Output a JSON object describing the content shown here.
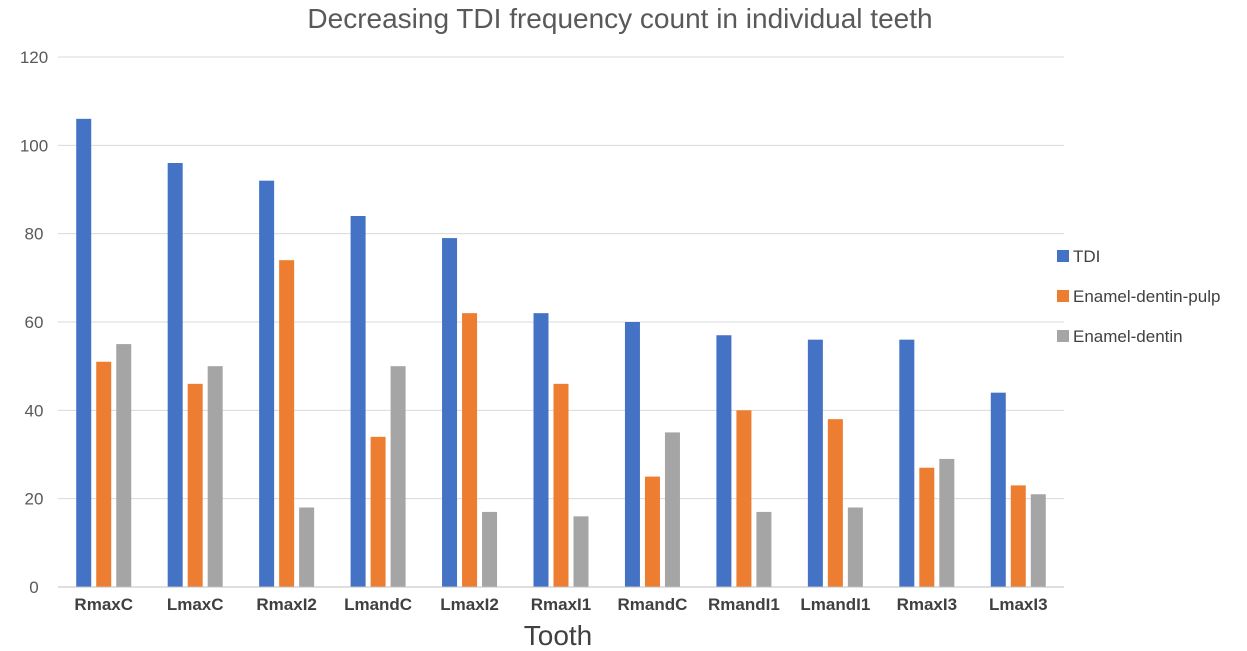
{
  "chart_data": {
    "type": "bar",
    "title": "Decreasing TDI frequency count in individual teeth",
    "xlabel": "Tooth",
    "ylabel": "",
    "ylim": [
      0,
      120
    ],
    "yticks": [
      0,
      20,
      40,
      60,
      80,
      100,
      120
    ],
    "grid": true,
    "legend_position": "right",
    "categories": [
      "RmaxC",
      "LmaxC",
      "RmaxI2",
      "LmandC",
      "LmaxI2",
      "RmaxI1",
      "RmandC",
      "RmandI1",
      "LmandI1",
      "RmaxI3",
      "LmaxI3"
    ],
    "series": [
      {
        "name": "TDI",
        "color": "#4472C4",
        "values": [
          106,
          96,
          92,
          84,
          79,
          62,
          60,
          57,
          56,
          56,
          44
        ]
      },
      {
        "name": "Enamel-dentin-pulp",
        "color": "#ED7D31",
        "values": [
          51,
          46,
          74,
          34,
          62,
          46,
          25,
          40,
          38,
          27,
          23
        ]
      },
      {
        "name": "Enamel-dentin",
        "color": "#A5A5A5",
        "values": [
          55,
          50,
          18,
          50,
          17,
          16,
          35,
          17,
          18,
          29,
          21
        ]
      }
    ]
  }
}
